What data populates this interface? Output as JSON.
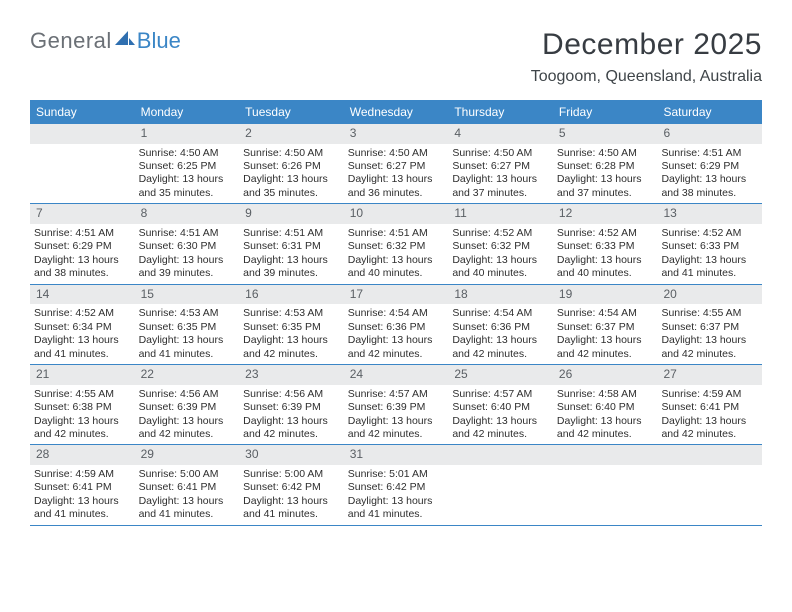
{
  "logo": {
    "part1": "General",
    "part2": "Blue",
    "text_color_1": "#6b7076",
    "text_color_2": "#3b86c6",
    "icon_color": "#2f6fb0"
  },
  "title": "December 2025",
  "location": "Toogoom, Queensland, Australia",
  "colors": {
    "header_bg": "#3b86c6",
    "header_text": "#ffffff",
    "daynum_bg": "#e9eaeb",
    "daynum_text": "#5a5f64",
    "body_text": "#2e2e2e",
    "row_border": "#3b86c6",
    "page_bg": "#ffffff"
  },
  "day_names": [
    "Sunday",
    "Monday",
    "Tuesday",
    "Wednesday",
    "Thursday",
    "Friday",
    "Saturday"
  ],
  "weeks": [
    [
      {
        "num": "",
        "sunrise": "",
        "sunset": "",
        "daylight": ""
      },
      {
        "num": "1",
        "sunrise": "Sunrise: 4:50 AM",
        "sunset": "Sunset: 6:25 PM",
        "daylight": "Daylight: 13 hours and 35 minutes."
      },
      {
        "num": "2",
        "sunrise": "Sunrise: 4:50 AM",
        "sunset": "Sunset: 6:26 PM",
        "daylight": "Daylight: 13 hours and 35 minutes."
      },
      {
        "num": "3",
        "sunrise": "Sunrise: 4:50 AM",
        "sunset": "Sunset: 6:27 PM",
        "daylight": "Daylight: 13 hours and 36 minutes."
      },
      {
        "num": "4",
        "sunrise": "Sunrise: 4:50 AM",
        "sunset": "Sunset: 6:27 PM",
        "daylight": "Daylight: 13 hours and 37 minutes."
      },
      {
        "num": "5",
        "sunrise": "Sunrise: 4:50 AM",
        "sunset": "Sunset: 6:28 PM",
        "daylight": "Daylight: 13 hours and 37 minutes."
      },
      {
        "num": "6",
        "sunrise": "Sunrise: 4:51 AM",
        "sunset": "Sunset: 6:29 PM",
        "daylight": "Daylight: 13 hours and 38 minutes."
      }
    ],
    [
      {
        "num": "7",
        "sunrise": "Sunrise: 4:51 AM",
        "sunset": "Sunset: 6:29 PM",
        "daylight": "Daylight: 13 hours and 38 minutes."
      },
      {
        "num": "8",
        "sunrise": "Sunrise: 4:51 AM",
        "sunset": "Sunset: 6:30 PM",
        "daylight": "Daylight: 13 hours and 39 minutes."
      },
      {
        "num": "9",
        "sunrise": "Sunrise: 4:51 AM",
        "sunset": "Sunset: 6:31 PM",
        "daylight": "Daylight: 13 hours and 39 minutes."
      },
      {
        "num": "10",
        "sunrise": "Sunrise: 4:51 AM",
        "sunset": "Sunset: 6:32 PM",
        "daylight": "Daylight: 13 hours and 40 minutes."
      },
      {
        "num": "11",
        "sunrise": "Sunrise: 4:52 AM",
        "sunset": "Sunset: 6:32 PM",
        "daylight": "Daylight: 13 hours and 40 minutes."
      },
      {
        "num": "12",
        "sunrise": "Sunrise: 4:52 AM",
        "sunset": "Sunset: 6:33 PM",
        "daylight": "Daylight: 13 hours and 40 minutes."
      },
      {
        "num": "13",
        "sunrise": "Sunrise: 4:52 AM",
        "sunset": "Sunset: 6:33 PM",
        "daylight": "Daylight: 13 hours and 41 minutes."
      }
    ],
    [
      {
        "num": "14",
        "sunrise": "Sunrise: 4:52 AM",
        "sunset": "Sunset: 6:34 PM",
        "daylight": "Daylight: 13 hours and 41 minutes."
      },
      {
        "num": "15",
        "sunrise": "Sunrise: 4:53 AM",
        "sunset": "Sunset: 6:35 PM",
        "daylight": "Daylight: 13 hours and 41 minutes."
      },
      {
        "num": "16",
        "sunrise": "Sunrise: 4:53 AM",
        "sunset": "Sunset: 6:35 PM",
        "daylight": "Daylight: 13 hours and 42 minutes."
      },
      {
        "num": "17",
        "sunrise": "Sunrise: 4:54 AM",
        "sunset": "Sunset: 6:36 PM",
        "daylight": "Daylight: 13 hours and 42 minutes."
      },
      {
        "num": "18",
        "sunrise": "Sunrise: 4:54 AM",
        "sunset": "Sunset: 6:36 PM",
        "daylight": "Daylight: 13 hours and 42 minutes."
      },
      {
        "num": "19",
        "sunrise": "Sunrise: 4:54 AM",
        "sunset": "Sunset: 6:37 PM",
        "daylight": "Daylight: 13 hours and 42 minutes."
      },
      {
        "num": "20",
        "sunrise": "Sunrise: 4:55 AM",
        "sunset": "Sunset: 6:37 PM",
        "daylight": "Daylight: 13 hours and 42 minutes."
      }
    ],
    [
      {
        "num": "21",
        "sunrise": "Sunrise: 4:55 AM",
        "sunset": "Sunset: 6:38 PM",
        "daylight": "Daylight: 13 hours and 42 minutes."
      },
      {
        "num": "22",
        "sunrise": "Sunrise: 4:56 AM",
        "sunset": "Sunset: 6:39 PM",
        "daylight": "Daylight: 13 hours and 42 minutes."
      },
      {
        "num": "23",
        "sunrise": "Sunrise: 4:56 AM",
        "sunset": "Sunset: 6:39 PM",
        "daylight": "Daylight: 13 hours and 42 minutes."
      },
      {
        "num": "24",
        "sunrise": "Sunrise: 4:57 AM",
        "sunset": "Sunset: 6:39 PM",
        "daylight": "Daylight: 13 hours and 42 minutes."
      },
      {
        "num": "25",
        "sunrise": "Sunrise: 4:57 AM",
        "sunset": "Sunset: 6:40 PM",
        "daylight": "Daylight: 13 hours and 42 minutes."
      },
      {
        "num": "26",
        "sunrise": "Sunrise: 4:58 AM",
        "sunset": "Sunset: 6:40 PM",
        "daylight": "Daylight: 13 hours and 42 minutes."
      },
      {
        "num": "27",
        "sunrise": "Sunrise: 4:59 AM",
        "sunset": "Sunset: 6:41 PM",
        "daylight": "Daylight: 13 hours and 42 minutes."
      }
    ],
    [
      {
        "num": "28",
        "sunrise": "Sunrise: 4:59 AM",
        "sunset": "Sunset: 6:41 PM",
        "daylight": "Daylight: 13 hours and 41 minutes."
      },
      {
        "num": "29",
        "sunrise": "Sunrise: 5:00 AM",
        "sunset": "Sunset: 6:41 PM",
        "daylight": "Daylight: 13 hours and 41 minutes."
      },
      {
        "num": "30",
        "sunrise": "Sunrise: 5:00 AM",
        "sunset": "Sunset: 6:42 PM",
        "daylight": "Daylight: 13 hours and 41 minutes."
      },
      {
        "num": "31",
        "sunrise": "Sunrise: 5:01 AM",
        "sunset": "Sunset: 6:42 PM",
        "daylight": "Daylight: 13 hours and 41 minutes."
      },
      {
        "num": "",
        "sunrise": "",
        "sunset": "",
        "daylight": ""
      },
      {
        "num": "",
        "sunrise": "",
        "sunset": "",
        "daylight": ""
      },
      {
        "num": "",
        "sunrise": "",
        "sunset": "",
        "daylight": ""
      }
    ]
  ]
}
